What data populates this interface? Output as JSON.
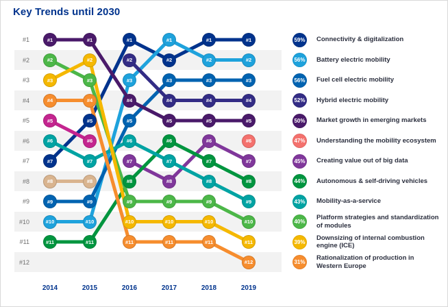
{
  "title": "Key Trends until 2030",
  "chart_data": {
    "type": "bump",
    "title": "Key Trends until 2030",
    "x_ticks": [
      "2014",
      "2015",
      "2016",
      "2017",
      "2018",
      "2019"
    ],
    "y_ticks": [
      "#1",
      "#2",
      "#3",
      "#4",
      "#5",
      "#6",
      "#7",
      "#8",
      "#9",
      "#10",
      "#11",
      "#12"
    ],
    "y_meaning": "rank per year, 1 = most important trend",
    "legend_position": "right",
    "grid": "alternating horizontal stripes",
    "series": [
      {
        "name": "Connectivity & digitalization",
        "pct": "59%",
        "color": "#00338d",
        "ranks": [
          7,
          5,
          1,
          2,
          1,
          1
        ]
      },
      {
        "name": "Battery electric mobility",
        "pct": "56%",
        "color": "#1ea2dc",
        "ranks": [
          10,
          10,
          3,
          1,
          2,
          2
        ]
      },
      {
        "name": "Fuel cell electric mobility",
        "pct": "56%",
        "color": "#0063b1",
        "ranks": [
          9,
          9,
          5,
          3,
          3,
          3
        ]
      },
      {
        "name": "Hybrid electric mobility",
        "pct": "52%",
        "color": "#332c85",
        "ranks": [
          null,
          null,
          2,
          4,
          4,
          4
        ]
      },
      {
        "name": "Market growth in emerging markets",
        "pct": "50%",
        "color": "#4a1a6a",
        "ranks": [
          1,
          1,
          4,
          5,
          5,
          5
        ]
      },
      {
        "name": "Understanding the mobility ecosystem",
        "pct": "47%",
        "color": "#f4716d",
        "ranks": [
          null,
          null,
          null,
          null,
          null,
          6
        ]
      },
      {
        "name": "Creating value out of big data",
        "pct": "45%",
        "color": "#80379b",
        "ranks": [
          null,
          null,
          7,
          8,
          6,
          7
        ]
      },
      {
        "name": "Autonomous & self-driving vehicles",
        "pct": "44%",
        "color": "#00953f",
        "ranks": [
          11,
          11,
          8,
          6,
          7,
          8
        ]
      },
      {
        "name": "Mobility-as-a-service",
        "pct": "43%",
        "color": "#00a3a3",
        "ranks": [
          6,
          7,
          6,
          7,
          8,
          9
        ]
      },
      {
        "name": "Platform strategies and standardization of modules",
        "pct": "40%",
        "color": "#4cb748",
        "ranks": [
          2,
          3,
          9,
          9,
          9,
          10
        ]
      },
      {
        "name": "Downsizing of internal combustion engine (ICE)",
        "pct": "39%",
        "color": "#f5b800",
        "ranks": [
          3,
          2,
          10,
          10,
          10,
          11
        ]
      },
      {
        "name": "Rationalization of production in Western Europe",
        "pct": "31%",
        "color": "#f68d2e",
        "ranks": [
          4,
          4,
          11,
          11,
          11,
          12
        ]
      },
      {
        "name": "",
        "pct": null,
        "color": "#c4258f",
        "ranks": [
          5,
          6,
          null,
          null,
          null,
          null
        ]
      },
      {
        "name": "",
        "pct": null,
        "color": "#d9b48f",
        "ranks": [
          8,
          8,
          null,
          null,
          null,
          null
        ]
      }
    ]
  }
}
